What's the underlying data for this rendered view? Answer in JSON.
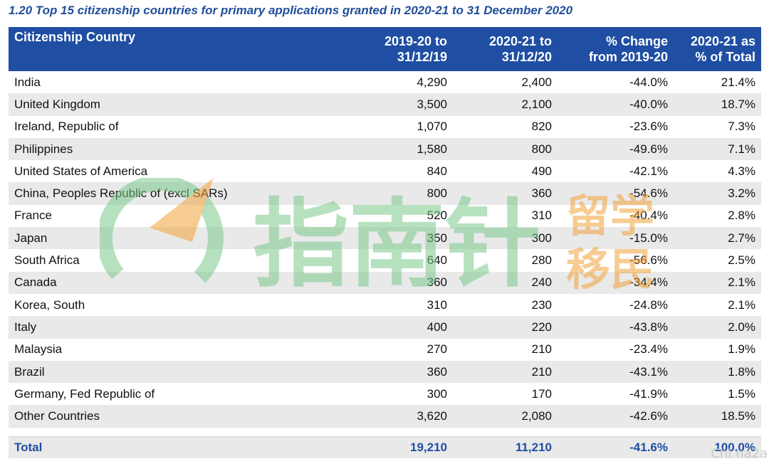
{
  "title": "1.20 Top 15 citizenship countries for primary applications granted in 2020-21 to 31 December 2020",
  "headers": {
    "country": "Citizenship Country",
    "col1_line1": "2019-20 to",
    "col1_line2": "31/12/19",
    "col2_line1": "2020-21 to",
    "col2_line2": "31/12/20",
    "col3_line1": "% Change",
    "col3_line2": "from 2019-20",
    "col4_line1": "2020-21 as",
    "col4_line2": "% of Total"
  },
  "rows": [
    {
      "country": "India",
      "v1": "4,290",
      "v2": "2,400",
      "change": "-44.0%",
      "share": "21.4%"
    },
    {
      "country": "United Kingdom",
      "v1": "3,500",
      "v2": "2,100",
      "change": "-40.0%",
      "share": "18.7%"
    },
    {
      "country": "Ireland, Republic of",
      "v1": "1,070",
      "v2": "820",
      "change": "-23.6%",
      "share": "7.3%"
    },
    {
      "country": "Philippines",
      "v1": "1,580",
      "v2": "800",
      "change": "-49.6%",
      "share": "7.1%"
    },
    {
      "country": "United States of America",
      "v1": "840",
      "v2": "490",
      "change": "-42.1%",
      "share": "4.3%"
    },
    {
      "country": "China, Peoples Republic of (excl SARs)",
      "v1": "800",
      "v2": "360",
      "change": "-54.6%",
      "share": "3.2%"
    },
    {
      "country": "France",
      "v1": "520",
      "v2": "310",
      "change": "-40.4%",
      "share": "2.8%"
    },
    {
      "country": "Japan",
      "v1": "350",
      "v2": "300",
      "change": "-15.0%",
      "share": "2.7%"
    },
    {
      "country": "South Africa",
      "v1": "640",
      "v2": "280",
      "change": "-56.6%",
      "share": "2.5%"
    },
    {
      "country": "Canada",
      "v1": "360",
      "v2": "240",
      "change": "-34.4%",
      "share": "2.1%"
    },
    {
      "country": "Korea, South",
      "v1": "310",
      "v2": "230",
      "change": "-24.8%",
      "share": "2.1%"
    },
    {
      "country": "Italy",
      "v1": "400",
      "v2": "220",
      "change": "-43.8%",
      "share": "2.0%"
    },
    {
      "country": "Malaysia",
      "v1": "270",
      "v2": "210",
      "change": "-23.4%",
      "share": "1.9%"
    },
    {
      "country": "Brazil",
      "v1": "360",
      "v2": "210",
      "change": "-43.1%",
      "share": "1.8%"
    },
    {
      "country": "Germany, Fed Republic of",
      "v1": "300",
      "v2": "170",
      "change": "-41.9%",
      "share": "1.5%"
    },
    {
      "country": "Other Countries",
      "v1": "3,620",
      "v2": "2,080",
      "change": "-42.6%",
      "share": "18.5%"
    }
  ],
  "total": {
    "label": "Total",
    "v1": "19,210",
    "v2": "11,210",
    "change": "-41.6%",
    "share": "100.0%"
  },
  "watermark": {
    "brand": "指南针",
    "tag_top": "留学",
    "tag_bottom": "移民"
  },
  "corner_mark": "Chi na2a",
  "colors": {
    "header_bg": "#1f4ea2",
    "title": "#1f4e9a",
    "stripe": "#e9e9ea",
    "watermark_green": "#7cc98a",
    "watermark_orange": "#f2a33a"
  }
}
